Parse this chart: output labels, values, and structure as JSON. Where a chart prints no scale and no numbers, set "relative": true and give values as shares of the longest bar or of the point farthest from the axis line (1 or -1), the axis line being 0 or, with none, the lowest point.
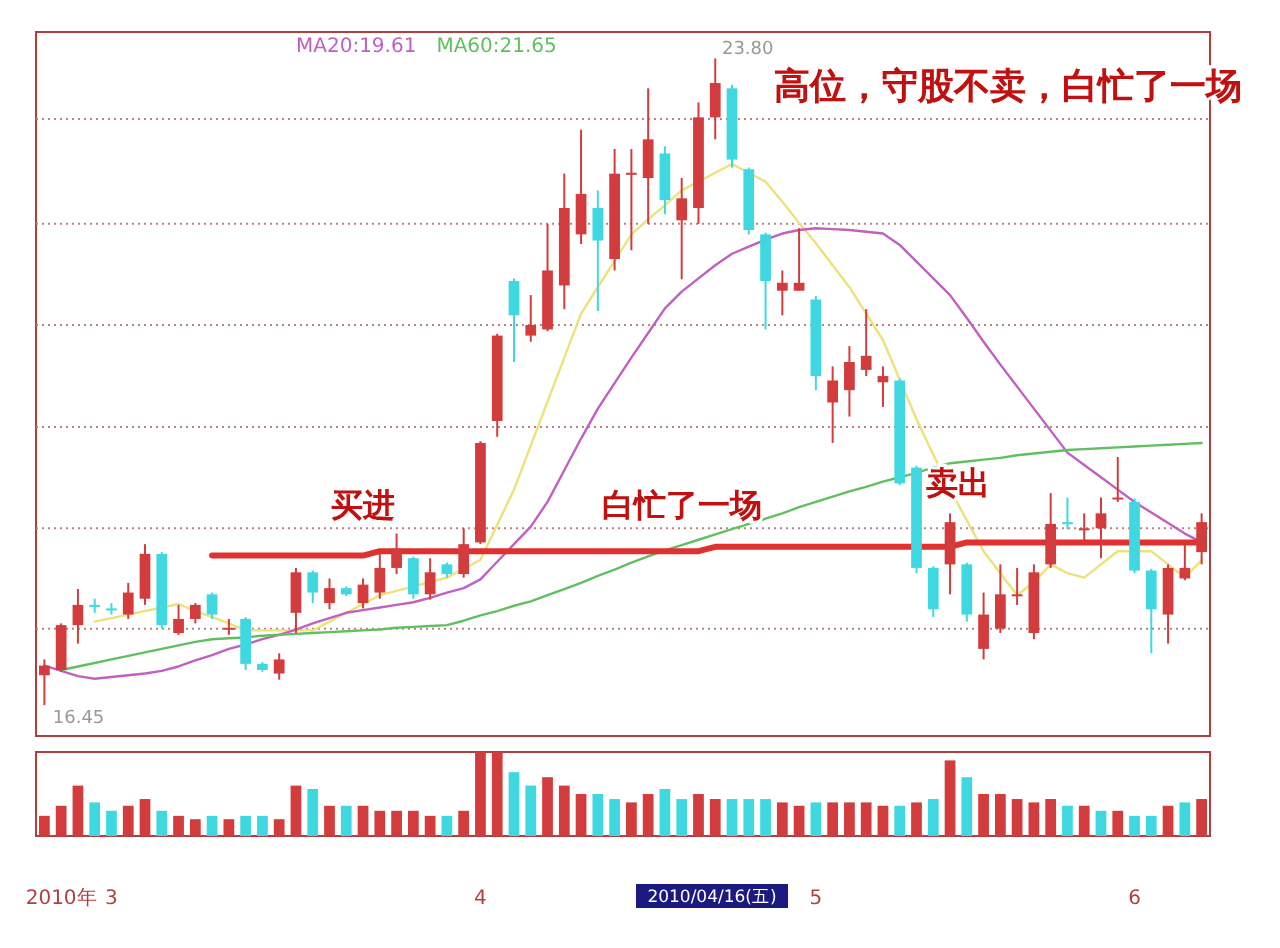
{
  "chart_data": [
    {
      "type": "candlestick",
      "ohlc": [
        [
          16.79,
          16.97,
          16.45,
          16.9
        ],
        [
          16.85,
          17.38,
          16.83,
          17.36
        ],
        [
          17.36,
          17.77,
          17.15,
          17.59
        ],
        [
          17.59,
          17.66,
          17.5,
          17.57
        ],
        [
          17.55,
          17.61,
          17.48,
          17.54
        ],
        [
          17.48,
          17.84,
          17.43,
          17.73
        ],
        [
          17.66,
          18.28,
          17.59,
          18.17
        ],
        [
          18.17,
          18.19,
          17.32,
          17.36
        ],
        [
          17.27,
          17.59,
          17.25,
          17.43
        ],
        [
          17.43,
          17.61,
          17.38,
          17.59
        ],
        [
          17.71,
          17.73,
          17.43,
          17.48
        ],
        [
          17.32,
          17.43,
          17.25,
          17.33
        ],
        [
          17.43,
          17.45,
          16.85,
          16.92
        ],
        [
          16.92,
          16.94,
          16.83,
          16.85
        ],
        [
          16.81,
          17.04,
          16.74,
          16.97
        ],
        [
          17.5,
          18.01,
          17.27,
          17.96
        ],
        [
          17.96,
          17.98,
          17.61,
          17.73
        ],
        [
          17.61,
          17.89,
          17.54,
          17.78
        ],
        [
          17.78,
          17.8,
          17.69,
          17.71
        ],
        [
          17.61,
          17.89,
          17.55,
          17.82
        ],
        [
          17.73,
          18.17,
          17.66,
          18.01
        ],
        [
          18.01,
          18.4,
          17.94,
          18.23
        ],
        [
          18.12,
          18.14,
          17.66,
          17.71
        ],
        [
          17.71,
          18.12,
          17.65,
          17.96
        ],
        [
          18.05,
          18.07,
          17.9,
          17.94
        ],
        [
          17.94,
          18.46,
          17.9,
          18.28
        ],
        [
          18.3,
          19.45,
          18.28,
          19.43
        ],
        [
          19.68,
          20.67,
          19.5,
          20.65
        ],
        [
          21.27,
          21.3,
          20.35,
          20.88
        ],
        [
          20.65,
          21.11,
          20.58,
          20.77
        ],
        [
          20.72,
          21.92,
          20.7,
          21.39
        ],
        [
          21.22,
          22.49,
          20.95,
          22.1
        ],
        [
          21.8,
          22.99,
          21.69,
          22.26
        ],
        [
          22.1,
          22.3,
          20.93,
          21.73
        ],
        [
          21.52,
          22.77,
          21.39,
          22.49
        ],
        [
          22.5,
          22.77,
          21.62,
          22.49
        ],
        [
          22.44,
          23.46,
          21.92,
          22.88
        ],
        [
          22.72,
          22.8,
          22.03,
          22.19
        ],
        [
          21.96,
          22.44,
          21.29,
          22.21
        ],
        [
          22.1,
          23.3,
          21.92,
          23.13
        ],
        [
          23.13,
          23.8,
          22.88,
          23.52
        ],
        [
          23.46,
          23.5,
          22.56,
          22.65
        ],
        [
          22.54,
          22.56,
          21.8,
          21.85
        ],
        [
          21.8,
          21.82,
          20.72,
          21.27
        ],
        [
          21.16,
          21.39,
          20.88,
          21.25
        ],
        [
          21.16,
          21.87,
          21.16,
          21.25
        ],
        [
          21.06,
          21.1,
          20.03,
          20.19
        ],
        [
          19.89,
          20.3,
          19.43,
          20.14
        ],
        [
          20.03,
          20.53,
          19.73,
          20.35
        ],
        [
          20.26,
          20.95,
          20.19,
          20.42
        ],
        [
          20.12,
          20.3,
          19.84,
          20.19
        ],
        [
          20.14,
          20.16,
          18.95,
          18.97
        ],
        [
          19.15,
          19.17,
          17.95,
          18.01
        ],
        [
          18.01,
          18.03,
          17.45,
          17.54
        ],
        [
          18.05,
          18.63,
          17.71,
          18.53
        ],
        [
          18.05,
          18.07,
          17.4,
          17.48
        ],
        [
          17.09,
          17.73,
          16.97,
          17.48
        ],
        [
          17.32,
          18.05,
          17.27,
          17.71
        ],
        [
          17.71,
          18.01,
          17.59,
          17.71
        ],
        [
          17.27,
          18.05,
          17.2,
          17.96
        ],
        [
          18.05,
          18.86,
          18.01,
          18.51
        ],
        [
          18.53,
          18.81,
          18.45,
          18.51
        ],
        [
          18.46,
          18.63,
          18.3,
          18.46
        ],
        [
          18.46,
          18.81,
          18.12,
          18.63
        ],
        [
          18.8,
          19.27,
          18.76,
          18.81
        ],
        [
          18.76,
          18.8,
          17.95,
          17.98
        ],
        [
          17.98,
          18.0,
          17.04,
          17.54
        ],
        [
          17.48,
          18.05,
          17.15,
          18.01
        ],
        [
          17.89,
          18.28,
          17.87,
          18.01
        ],
        [
          18.19,
          18.63,
          18.05,
          18.53
        ]
      ],
      "colors": [
        "#d23c3c",
        "#d23c3c",
        "#d23c3c",
        "#3fd8e0",
        "#3fd8e0",
        "#d23c3c",
        "#d23c3c",
        "#3fd8e0",
        "#d23c3c",
        "#d23c3c",
        "#3fd8e0",
        "#d23c3c",
        "#3fd8e0",
        "#3fd8e0",
        "#d23c3c",
        "#d23c3c",
        "#3fd8e0",
        "#d23c3c",
        "#3fd8e0",
        "#d23c3c",
        "#d23c3c",
        "#d23c3c",
        "#3fd8e0",
        "#d23c3c",
        "#3fd8e0",
        "#d23c3c",
        "#d23c3c",
        "#d23c3c",
        "#3fd8e0",
        "#d23c3c",
        "#d23c3c",
        "#d23c3c",
        "#d23c3c",
        "#3fd8e0",
        "#d23c3c",
        "#d23c3c",
        "#d23c3c",
        "#3fd8e0",
        "#d23c3c",
        "#d23c3c",
        "#d23c3c",
        "#3fd8e0",
        "#3fd8e0",
        "#3fd8e0",
        "#d23c3c",
        "#d23c3c",
        "#3fd8e0",
        "#d23c3c",
        "#d23c3c",
        "#d23c3c",
        "#d23c3c",
        "#3fd8e0",
        "#3fd8e0",
        "#3fd8e0",
        "#d23c3c",
        "#3fd8e0",
        "#d23c3c",
        "#d23c3c",
        "#d23c3c",
        "#d23c3c",
        "#d23c3c",
        "#3fd8e0",
        "#d23c3c",
        "#d23c3c",
        "#d23c3c",
        "#3fd8e0",
        "#3fd8e0",
        "#d23c3c",
        "#d23c3c",
        "#d23c3c"
      ],
      "series": [
        {
          "type": "line",
          "color": "#ece27a",
          "values": [
            null,
            null,
            null,
            17.4,
            17.44,
            17.48,
            17.52,
            17.56,
            17.6,
            17.52,
            17.45,
            17.38,
            17.3,
            17.3,
            17.3,
            17.3,
            17.3,
            17.4,
            17.5,
            17.6,
            17.7,
            17.75,
            17.8,
            17.85,
            17.9,
            18.0,
            18.1,
            18.5,
            18.9,
            19.4,
            19.9,
            20.4,
            20.9,
            21.2,
            21.5,
            21.8,
            21.97,
            22.13,
            22.3,
            22.4,
            22.5,
            22.6,
            22.5,
            22.4,
            22.17,
            21.93,
            21.7,
            21.45,
            21.2,
            20.9,
            20.6,
            20.15,
            19.7,
            19.3,
            18.9,
            18.55,
            18.2,
            17.95,
            17.7,
            17.85,
            18.05,
            17.95,
            17.9,
            18.05,
            18.2,
            18.2,
            18.2,
            18.05,
            17.9,
            18.1
          ]
        },
        {
          "type": "line",
          "name": "MA20:19.61",
          "color": "#c060c0",
          "values": [
            16.9,
            16.84,
            16.78,
            16.75,
            16.77,
            16.79,
            16.81,
            16.84,
            16.89,
            16.96,
            17.02,
            17.09,
            17.14,
            17.2,
            17.25,
            17.31,
            17.38,
            17.44,
            17.5,
            17.53,
            17.56,
            17.59,
            17.62,
            17.67,
            17.73,
            17.78,
            17.88,
            18.08,
            18.28,
            18.48,
            18.76,
            19.12,
            19.48,
            19.82,
            20.11,
            20.4,
            20.68,
            20.96,
            21.15,
            21.3,
            21.45,
            21.58,
            21.66,
            21.74,
            21.81,
            21.85,
            21.87,
            21.86,
            21.85,
            21.83,
            21.81,
            21.68,
            21.49,
            21.3,
            21.11,
            20.85,
            20.58,
            20.32,
            20.07,
            19.82,
            19.57,
            19.32,
            19.18,
            19.04,
            18.9,
            18.76,
            18.64,
            18.52,
            18.4,
            18.3
          ]
        },
        {
          "type": "line",
          "name": "MA60:21.65",
          "color": "#60c060",
          "values": [
            null,
            16.85,
            16.89,
            16.93,
            16.97,
            17.01,
            17.05,
            17.09,
            17.13,
            17.17,
            17.2,
            17.21,
            17.22,
            17.24,
            17.25,
            17.26,
            17.27,
            17.28,
            17.29,
            17.3,
            17.31,
            17.33,
            17.34,
            17.35,
            17.36,
            17.41,
            17.47,
            17.52,
            17.58,
            17.63,
            17.7,
            17.77,
            17.84,
            17.92,
            17.99,
            18.07,
            18.14,
            18.21,
            18.27,
            18.33,
            18.39,
            18.45,
            18.51,
            18.57,
            18.63,
            18.7,
            18.76,
            18.82,
            18.88,
            18.93,
            18.99,
            19.04,
            19.09,
            19.15,
            19.2,
            19.22,
            19.24,
            19.26,
            19.29,
            19.31,
            19.33,
            19.35,
            19.36,
            19.37,
            19.38,
            19.39,
            19.4,
            19.41,
            19.42,
            19.43
          ]
        },
        {
          "type": "line",
          "color": "#e03030",
          "values": [
            null,
            null,
            null,
            null,
            null,
            null,
            null,
            null,
            null,
            null,
            18.15,
            18.15,
            18.15,
            18.15,
            18.15,
            18.15,
            18.15,
            18.15,
            18.15,
            18.15,
            18.2,
            18.2,
            18.2,
            18.2,
            18.2,
            18.2,
            18.2,
            18.2,
            18.2,
            18.2,
            18.2,
            18.2,
            18.2,
            18.2,
            18.2,
            18.2,
            18.2,
            18.2,
            18.2,
            18.2,
            18.25,
            18.25,
            18.25,
            18.25,
            18.25,
            18.25,
            18.25,
            18.25,
            18.25,
            18.25,
            18.25,
            18.25,
            18.25,
            18.25,
            18.25,
            18.3,
            18.3,
            18.3,
            18.3,
            18.3,
            18.3,
            18.3,
            18.3,
            18.3,
            18.3,
            18.3,
            18.3,
            18.3,
            18.3,
            18.3
          ]
        }
      ],
      "ylim": [
        16.1,
        24.1
      ],
      "yticks": [
        {
          "value": 17.32,
          "label": null
        },
        {
          "value": 18.46,
          "label": null
        },
        {
          "value": 19.61,
          "label": null
        },
        {
          "value": 20.77,
          "label": null
        },
        {
          "value": 21.92,
          "label": null
        },
        {
          "value": 23.11,
          "label": null
        }
      ],
      "grid": "y",
      "tick_labels": false,
      "annotations": [
        "高位，守股不卖，白忙了一场",
        "买进",
        "白忙了一场",
        "卖出",
        "23.80",
        "16.45"
      ]
    },
    {
      "type": "bar",
      "relative": true,
      "categories": [
        null,
        "2010年",
        null,
        null,
        "3",
        null,
        null,
        null,
        null,
        null,
        null,
        null,
        null,
        null,
        null,
        null,
        null,
        null,
        null,
        null,
        null,
        null,
        null,
        null,
        null,
        null,
        "4",
        null,
        null,
        null,
        null,
        null,
        null,
        null,
        null,
        null,
        null,
        null,
        null,
        null,
        null,
        null,
        null,
        null,
        null,
        null,
        "5",
        null,
        null,
        null,
        null,
        null,
        null,
        null,
        null,
        null,
        null,
        null,
        null,
        null,
        null,
        null,
        null,
        null,
        null,
        "6",
        null,
        null,
        null,
        null
      ],
      "values": [
        0.24,
        0.36,
        0.6,
        0.4,
        0.3,
        0.36,
        0.44,
        0.3,
        0.24,
        0.2,
        0.24,
        0.2,
        0.24,
        0.24,
        0.2,
        0.6,
        0.56,
        0.36,
        0.36,
        0.36,
        0.3,
        0.3,
        0.3,
        0.24,
        0.24,
        0.3,
        1,
        1,
        0.76,
        0.6,
        0.7,
        0.6,
        0.5,
        0.5,
        0.44,
        0.4,
        0.5,
        0.56,
        0.44,
        0.5,
        0.44,
        0.44,
        0.44,
        0.44,
        0.4,
        0.36,
        0.4,
        0.4,
        0.4,
        0.4,
        0.36,
        0.36,
        0.4,
        0.44,
        0.9,
        0.7,
        0.5,
        0.5,
        0.44,
        0.4,
        0.44,
        0.36,
        0.36,
        0.3,
        0.3,
        0.24,
        0.24,
        0.36,
        0.4,
        0.44
      ],
      "colors": [
        "#d23c3c",
        "#d23c3c",
        "#d23c3c",
        "#3fd8e0",
        "#3fd8e0",
        "#d23c3c",
        "#d23c3c",
        "#3fd8e0",
        "#d23c3c",
        "#d23c3c",
        "#3fd8e0",
        "#d23c3c",
        "#3fd8e0",
        "#3fd8e0",
        "#d23c3c",
        "#d23c3c",
        "#3fd8e0",
        "#d23c3c",
        "#3fd8e0",
        "#d23c3c",
        "#d23c3c",
        "#d23c3c",
        "#d23c3c",
        "#d23c3c",
        "#3fd8e0",
        "#d23c3c",
        "#d23c3c",
        "#d23c3c",
        "#3fd8e0",
        "#3fd8e0",
        "#d23c3c",
        "#d23c3c",
        "#d23c3c",
        "#3fd8e0",
        "#3fd8e0",
        "#d23c3c",
        "#d23c3c",
        "#3fd8e0",
        "#3fd8e0",
        "#d23c3c",
        "#d23c3c",
        "#3fd8e0",
        "#3fd8e0",
        "#3fd8e0",
        "#d23c3c",
        "#d23c3c",
        "#3fd8e0",
        "#d23c3c",
        "#d23c3c",
        "#d23c3c",
        "#d23c3c",
        "#3fd8e0",
        "#d23c3c",
        "#3fd8e0",
        "#d23c3c",
        "#3fd8e0",
        "#d23c3c",
        "#d23c3c",
        "#d23c3c",
        "#d23c3c",
        "#d23c3c",
        "#3fd8e0",
        "#d23c3c",
        "#3fd8e0",
        "#d23c3c",
        "#3fd8e0",
        "#3fd8e0",
        "#d23c3c",
        "#3fd8e0",
        "#d23c3c"
      ],
      "tick_labels": "x",
      "annotations": [
        "2010/04/16(五)"
      ]
    }
  ]
}
